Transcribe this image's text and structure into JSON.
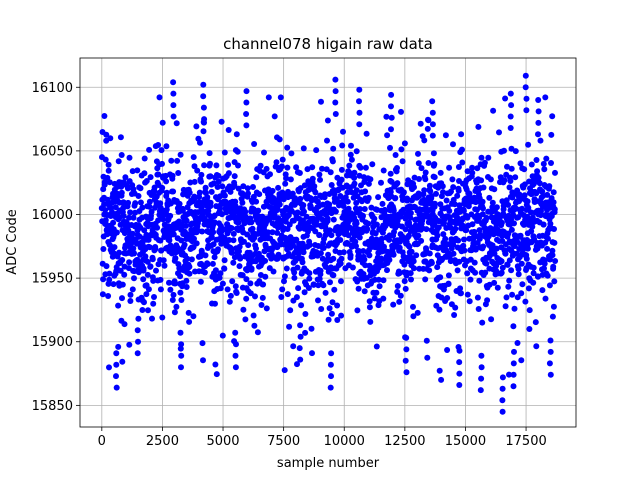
{
  "chart_data": {
    "type": "scatter",
    "title": "channel078 higain raw data",
    "xlabel": "sample number",
    "ylabel": "ADC Code",
    "xlim": [
      -900,
      19560
    ],
    "ylim": [
      15833,
      16123
    ],
    "x_ticks": [
      0,
      2500,
      5000,
      7500,
      10000,
      12500,
      15000,
      17500
    ],
    "x_tick_labels": [
      "0",
      "2500",
      "5000",
      "7500",
      "10000",
      "12500",
      "15000",
      "17500"
    ],
    "y_ticks": [
      15850,
      15900,
      15950,
      16000,
      16050,
      16100
    ],
    "y_tick_labels": [
      "15850",
      "15900",
      "15950",
      "16000",
      "16050",
      "16100"
    ],
    "grid": true,
    "marker_color": "#0000ff",
    "series": [
      {
        "n_samples": 18700,
        "mean": 15990,
        "band": [
          15905,
          16075
        ],
        "spikes_high": [
          [
            2960,
            16104
          ],
          [
            4200,
            16102
          ],
          [
            5950,
            16097
          ],
          [
            9650,
            16106
          ],
          [
            10620,
            16098
          ],
          [
            11940,
            16094
          ],
          [
            13640,
            16089
          ],
          [
            16880,
            16095
          ],
          [
            17500,
            16109
          ],
          [
            18000,
            16090
          ]
        ],
        "spikes_low": [
          [
            600,
            15864
          ],
          [
            1500,
            15891
          ],
          [
            3260,
            15880
          ],
          [
            5520,
            15880
          ],
          [
            8180,
            15886
          ],
          [
            9440,
            15864
          ],
          [
            12550,
            15876
          ],
          [
            14760,
            15866
          ],
          [
            15650,
            15862
          ],
          [
            16540,
            15845
          ],
          [
            17000,
            15865
          ],
          [
            18500,
            15874
          ]
        ]
      }
    ]
  }
}
